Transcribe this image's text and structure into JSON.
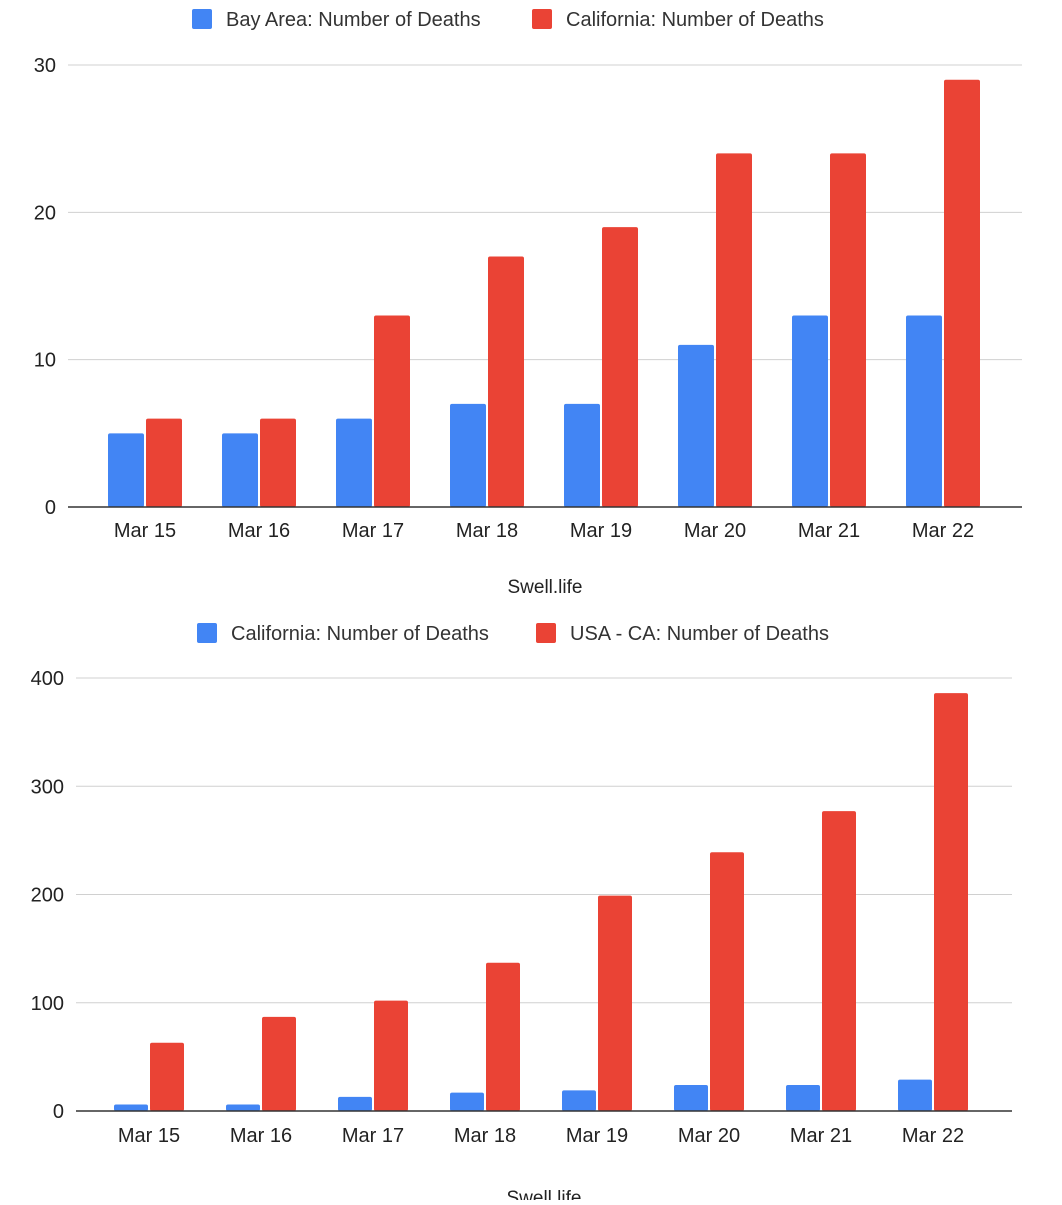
{
  "chart_data": [
    {
      "type": "bar",
      "categories": [
        "Mar 15",
        "Mar 16",
        "Mar 17",
        "Mar 18",
        "Mar 19",
        "Mar 20",
        "Mar 21",
        "Mar 22"
      ],
      "series": [
        {
          "name": "Bay Area: Number of Deaths",
          "values": [
            5,
            5,
            6,
            7,
            7,
            11,
            13,
            13
          ],
          "color": "#4285f4"
        },
        {
          "name": "California: Number of Deaths",
          "values": [
            6,
            6,
            13,
            17,
            19,
            24,
            24,
            29
          ],
          "color": "#ea4335"
        }
      ],
      "title": "",
      "xlabel": "Swell.life",
      "ylabel": "",
      "ylim": [
        0,
        30
      ],
      "yticks": [
        0,
        10,
        20,
        30
      ],
      "legend": "top",
      "grid": true
    },
    {
      "type": "bar",
      "categories": [
        "Mar 15",
        "Mar 16",
        "Mar 17",
        "Mar 18",
        "Mar 19",
        "Mar 20",
        "Mar 21",
        "Mar 22"
      ],
      "series": [
        {
          "name": "California: Number of Deaths",
          "values": [
            6,
            6,
            13,
            17,
            19,
            24,
            24,
            29
          ],
          "color": "#4285f4"
        },
        {
          "name": "USA - CA: Number of Deaths",
          "values": [
            63,
            87,
            102,
            137,
            199,
            239,
            277,
            386
          ],
          "color": "#ea4335"
        }
      ],
      "title": "",
      "xlabel": "Swell.life",
      "ylabel": "",
      "ylim": [
        0,
        400
      ],
      "yticks": [
        0,
        100,
        200,
        300,
        400
      ],
      "legend": "top",
      "grid": true
    }
  ]
}
